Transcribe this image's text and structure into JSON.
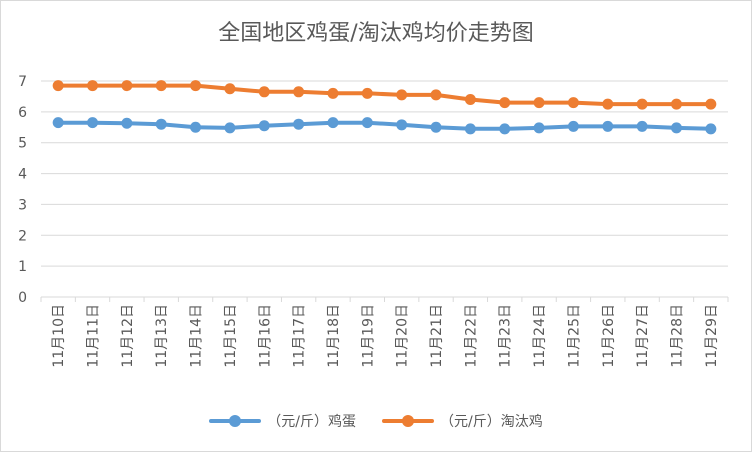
{
  "chart_data": {
    "type": "line",
    "title": "全国地区鸡蛋/淘汰鸡均价走势图",
    "categories": [
      "11月10日",
      "11月11日",
      "11月12日",
      "11月13日",
      "11月14日",
      "11月15日",
      "11月16日",
      "11月17日",
      "11月18日",
      "11月19日",
      "11月20日",
      "11月21日",
      "11月22日",
      "11月23日",
      "11月24日",
      "11月25日",
      "11月26日",
      "11月27日",
      "11月28日",
      "11月29日"
    ],
    "ylim": [
      0,
      7
    ],
    "yticks": [
      0,
      1,
      2,
      3,
      4,
      5,
      6,
      7
    ],
    "grid": true,
    "legend_position": "bottom",
    "series": [
      {
        "name": "（元/斤）鸡蛋",
        "color": "#5b9bd5",
        "values": [
          5.65,
          5.65,
          5.63,
          5.6,
          5.5,
          5.48,
          5.55,
          5.6,
          5.65,
          5.65,
          5.58,
          5.5,
          5.45,
          5.45,
          5.48,
          5.53,
          5.53,
          5.53,
          5.48,
          5.45
        ]
      },
      {
        "name": "（元/斤）淘汰鸡",
        "color": "#ed7d31",
        "values": [
          6.85,
          6.85,
          6.85,
          6.85,
          6.85,
          6.75,
          6.65,
          6.65,
          6.6,
          6.6,
          6.55,
          6.55,
          6.4,
          6.3,
          6.3,
          6.3,
          6.25,
          6.25,
          6.25,
          6.25
        ]
      }
    ]
  }
}
